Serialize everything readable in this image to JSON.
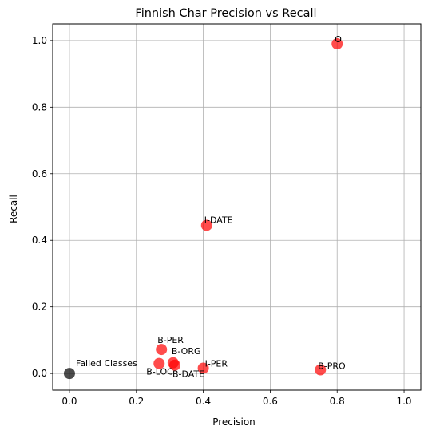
{
  "chart_data": {
    "type": "scatter",
    "title": "Finnish Char Precision vs Recall",
    "xlabel": "Precision",
    "ylabel": "Recall",
    "xlim": [
      -0.05,
      1.05
    ],
    "ylim": [
      -0.05,
      1.05
    ],
    "xticks": [
      "0.0",
      "0.2",
      "0.4",
      "0.6",
      "0.8",
      "1.0"
    ],
    "yticks": [
      "0.0",
      "0.2",
      "0.4",
      "0.6",
      "0.8",
      "1.0"
    ],
    "grid": true,
    "colors": {
      "class_point": "#ff0000",
      "failed_point": "#000000",
      "grid": "#b0b0b0"
    },
    "points": [
      {
        "label": "O",
        "x": 0.8,
        "y": 0.99,
        "group": "class"
      },
      {
        "label": "I-DATE",
        "x": 0.41,
        "y": 0.445,
        "group": "class"
      },
      {
        "label": "B-PER",
        "x": 0.275,
        "y": 0.072,
        "group": "class"
      },
      {
        "label": "B-ORG",
        "x": 0.31,
        "y": 0.032,
        "group": "class"
      },
      {
        "label": "B-LOC",
        "x": 0.268,
        "y": 0.03,
        "group": "class"
      },
      {
        "label": "B-DATE",
        "x": 0.315,
        "y": 0.025,
        "group": "class"
      },
      {
        "label": "I-PER",
        "x": 0.4,
        "y": 0.016,
        "group": "class"
      },
      {
        "label": "B-PRO",
        "x": 0.75,
        "y": 0.011,
        "group": "class"
      },
      {
        "label": "Failed Classes",
        "x": 0.0,
        "y": 0.0,
        "group": "failed"
      }
    ]
  }
}
